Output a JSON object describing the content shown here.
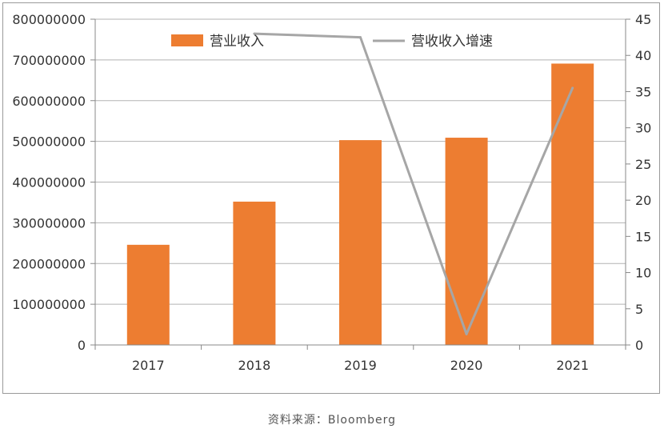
{
  "chart_data": {
    "type": "bar",
    "categories": [
      "2017",
      "2018",
      "2019",
      "2020",
      "2021"
    ],
    "series": [
      {
        "name": "营业收入",
        "type": "bar",
        "axis": "left",
        "color": "#ED7D31",
        "values": [
          246000000,
          352000000,
          503000000,
          509000000,
          691000000
        ]
      },
      {
        "name": "营收收入增速",
        "type": "line",
        "axis": "right",
        "color": "#A6A6A6",
        "values": [
          null,
          43,
          42.5,
          1.5,
          35.5
        ]
      }
    ],
    "y_left": {
      "lim": [
        0,
        800000000
      ],
      "ticks": [
        "0",
        "100000000",
        "200000000",
        "300000000",
        "400000000",
        "500000000",
        "600000000",
        "700000000",
        "800000000"
      ]
    },
    "y_right": {
      "lim": [
        0,
        45
      ],
      "ticks": [
        "0",
        "5",
        "10",
        "15",
        "20",
        "25",
        "30",
        "35",
        "40",
        "45"
      ]
    },
    "grid": true,
    "legend_position": "top"
  },
  "source_text": "资料来源：Bloomberg"
}
